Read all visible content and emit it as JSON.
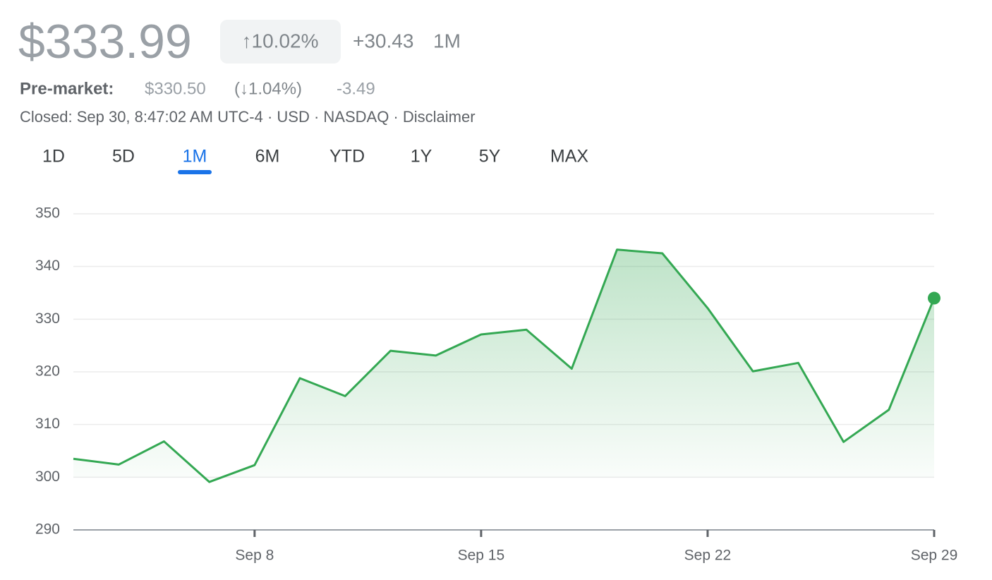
{
  "header": {
    "price": "$333.99",
    "change_pct": "↑10.02%",
    "change_abs": "+30.43",
    "period": "1M"
  },
  "premarket": {
    "label": "Pre-market:",
    "price": "$330.50",
    "change_pct": "(↓1.04%)",
    "change_abs": "-3.49"
  },
  "status": "Closed: Sep 30, 8:47:02 AM UTC-4 · USD · NASDAQ · Disclaimer",
  "tabs": [
    "1D",
    "5D",
    "1M",
    "6M",
    "YTD",
    "1Y",
    "5Y",
    "MAX"
  ],
  "active_tab": 2,
  "chart_data": {
    "type": "area",
    "categories": [
      null,
      null,
      null,
      null,
      "Sep 8",
      null,
      null,
      null,
      null,
      "Sep 15",
      null,
      null,
      null,
      null,
      "Sep 22",
      null,
      null,
      null,
      null,
      "Sep 29"
    ],
    "values": [
      303.5,
      302.4,
      306.8,
      299.1,
      302.3,
      318.8,
      315.4,
      324.0,
      323.1,
      327.1,
      328.0,
      320.6,
      343.2,
      342.5,
      332.1,
      320.1,
      321.7,
      306.7,
      312.8,
      333.99
    ],
    "color": "#34a853",
    "ylim": [
      290,
      350
    ],
    "yticks": [
      290,
      300,
      310,
      320,
      330,
      340,
      350
    ],
    "grid": true
  }
}
